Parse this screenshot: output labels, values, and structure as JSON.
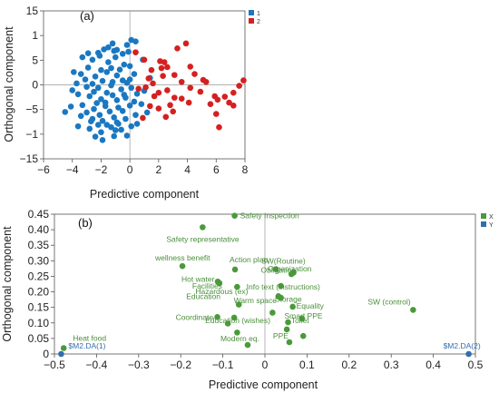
{
  "chart_data": [
    {
      "type": "scatter",
      "panel_label": "(a)",
      "xlabel": "Predictive component",
      "ylabel": "Orthogonal component",
      "xlim": [
        -6,
        8
      ],
      "ylim": [
        -15,
        15
      ],
      "xticks": [
        -6,
        -4,
        -2,
        0,
        2,
        4,
        6,
        8
      ],
      "yticks": [
        -15,
        -10,
        -5,
        0,
        5,
        10,
        15
      ],
      "legend": {
        "position": "top-right",
        "entries": [
          "1",
          "2"
        ]
      },
      "colors": {
        "1": "#1a78c2",
        "2": "#d62020"
      },
      "series": [
        {
          "name": "1",
          "points": [
            [
              -1.2,
              8.4
            ],
            [
              -0.9,
              7.1
            ],
            [
              -0.5,
              6.3
            ],
            [
              -0.2,
              8.1
            ],
            [
              0.1,
              9.1
            ],
            [
              0.4,
              8.8
            ],
            [
              -1.8,
              7.2
            ],
            [
              -2.2,
              6.5
            ],
            [
              -2.6,
              5.1
            ],
            [
              -1.5,
              4.6
            ],
            [
              -1.0,
              5.6
            ],
            [
              -0.4,
              4.1
            ],
            [
              0.0,
              3.8
            ],
            [
              0.3,
              2.2
            ],
            [
              -2.9,
              3.5
            ],
            [
              -3.4,
              2.2
            ],
            [
              -2.4,
              1.7
            ],
            [
              -1.6,
              2.6
            ],
            [
              -0.9,
              1.9
            ],
            [
              -0.5,
              0.9
            ],
            [
              0.0,
              1.1
            ],
            [
              -3.7,
              0.3
            ],
            [
              -3.0,
              -0.4
            ],
            [
              -2.2,
              -0.6
            ],
            [
              -1.3,
              -0.1
            ],
            [
              -0.6,
              -0.9
            ],
            [
              0.1,
              -0.6
            ],
            [
              0.5,
              -1.8
            ],
            [
              -3.6,
              -1.9
            ],
            [
              -2.8,
              -2.3
            ],
            [
              -2.0,
              -2.9
            ],
            [
              -1.2,
              -2.1
            ],
            [
              -0.3,
              -2.6
            ],
            [
              -4.5,
              -5.5
            ],
            [
              -4.1,
              -4.4
            ],
            [
              -3.3,
              -4.1
            ],
            [
              -2.5,
              -4.9
            ],
            [
              -1.7,
              -4.3
            ],
            [
              -0.8,
              -4.6
            ],
            [
              0.0,
              -4.2
            ],
            [
              0.8,
              -3.9
            ],
            [
              -3.4,
              -6.3
            ],
            [
              -2.6,
              -6.9
            ],
            [
              -1.9,
              -7.3
            ],
            [
              -1.1,
              -6.6
            ],
            [
              -0.3,
              -6.9
            ],
            [
              0.4,
              -6.1
            ],
            [
              -3.6,
              -8.4
            ],
            [
              -2.8,
              -8.9
            ],
            [
              -2.0,
              -9.6
            ],
            [
              -1.3,
              -8.6
            ],
            [
              -0.6,
              -9.1
            ],
            [
              0.1,
              -8.4
            ],
            [
              -1.9,
              -11.2
            ],
            [
              -2.4,
              -10.5
            ],
            [
              -1.1,
              -10.4
            ],
            [
              -0.2,
              -10.3
            ],
            [
              0.5,
              -7.9
            ],
            [
              -1.5,
              7.6
            ],
            [
              -2.1,
              5.9
            ],
            [
              -2.9,
              6.4
            ],
            [
              -1.3,
              3.4
            ],
            [
              -0.7,
              3.1
            ],
            [
              -3.1,
              1.1
            ],
            [
              -1.9,
              0.8
            ],
            [
              -0.2,
              0.4
            ],
            [
              -2.5,
              -1.4
            ],
            [
              -1.6,
              -1.6
            ],
            [
              -0.9,
              -3.1
            ],
            [
              -2.3,
              -3.7
            ],
            [
              -1.4,
              -5.4
            ],
            [
              -0.5,
              -5.3
            ],
            [
              -3.0,
              -5.6
            ],
            [
              -2.1,
              -6.1
            ],
            [
              -1.6,
              -8.1
            ],
            [
              -0.9,
              -7.6
            ],
            [
              -2.7,
              -7.4
            ],
            [
              0.9,
              5.1
            ],
            [
              1.0,
              -1.2
            ],
            [
              1.2,
              -5.6
            ],
            [
              -3.9,
              2.6
            ],
            [
              -4.0,
              -1.1
            ],
            [
              -1.1,
              6.9
            ],
            [
              -0.1,
              6.7
            ],
            [
              -2.0,
              3.0
            ],
            [
              -1.2,
              0.6
            ],
            [
              -1.7,
              -3.6
            ],
            [
              -0.4,
              -2.0
            ],
            [
              -2.2,
              -8.1
            ],
            [
              -1.0,
              -9.2
            ],
            [
              0.3,
              -3.4
            ],
            [
              -3.3,
              5.6
            ],
            [
              -2.6,
              0.2
            ],
            [
              -0.8,
              -7.9
            ],
            [
              1.4,
              1.4
            ]
          ]
        },
        {
          "name": "2",
          "points": [
            [
              0.4,
              6.6
            ],
            [
              1.0,
              5.1
            ],
            [
              1.5,
              3.0
            ],
            [
              2.1,
              4.8
            ],
            [
              2.6,
              3.6
            ],
            [
              3.3,
              7.4
            ],
            [
              3.9,
              8.4
            ],
            [
              2.3,
              1.8
            ],
            [
              3.1,
              2.0
            ],
            [
              4.2,
              3.7
            ],
            [
              1.3,
              1.3
            ],
            [
              0.6,
              -0.8
            ],
            [
              1.1,
              -0.5
            ],
            [
              1.6,
              0.3
            ],
            [
              2.0,
              -1.6
            ],
            [
              2.6,
              -1.1
            ],
            [
              3.1,
              -2.6
            ],
            [
              3.6,
              0.6
            ],
            [
              4.2,
              -0.6
            ],
            [
              4.9,
              -1.4
            ],
            [
              5.3,
              0.6
            ],
            [
              5.9,
              -2.3
            ],
            [
              6.6,
              -2.4
            ],
            [
              7.2,
              -1.6
            ],
            [
              7.6,
              -0.2
            ],
            [
              7.9,
              0.9
            ],
            [
              5.6,
              -3.9
            ],
            [
              6.1,
              -3.0
            ],
            [
              6.9,
              -3.6
            ],
            [
              6.0,
              -5.9
            ],
            [
              6.2,
              -8.6
            ],
            [
              4.1,
              -3.6
            ],
            [
              3.0,
              -5.4
            ],
            [
              2.0,
              -4.8
            ],
            [
              1.4,
              -4.3
            ],
            [
              0.9,
              -6.7
            ],
            [
              2.5,
              -6.5
            ],
            [
              2.2,
              3.4
            ],
            [
              2.4,
              4.6
            ],
            [
              5.1,
              1.0
            ],
            [
              7.2,
              -4.2
            ],
            [
              4.5,
              2.2
            ],
            [
              3.6,
              -2.8
            ],
            [
              2.8,
              -4.1
            ],
            [
              1.7,
              -2.3
            ]
          ]
        }
      ]
    },
    {
      "type": "scatter",
      "panel_label": "(b)",
      "xlabel": "Predictive component",
      "ylabel": "Orthogonal component",
      "xlim": [
        -0.5,
        0.5
      ],
      "ylim": [
        0,
        0.45
      ],
      "xticks": [
        -0.5,
        -0.4,
        -0.3,
        -0.2,
        -0.1,
        0,
        0.1,
        0.2,
        0.3,
        0.4,
        0.5
      ],
      "yticks": [
        0,
        0.05,
        0.1,
        0.15,
        0.2,
        0.25,
        0.3,
        0.35,
        0.4,
        0.45
      ],
      "legend": {
        "position": "top-right",
        "entries": [
          "X",
          "Y"
        ]
      },
      "colors": {
        "X": "#4a9a3a",
        "Y": "#2f6fae"
      },
      "series": [
        {
          "name": "X",
          "points": [
            {
              "label": "Safety Inspection",
              "x": -0.072,
              "y": 0.445
            },
            {
              "label": "Safety representative",
              "x": -0.148,
              "y": 0.408
            },
            {
              "label": "wellness benefit",
              "x": -0.196,
              "y": 0.283
            },
            {
              "label": "Action plan",
              "x": -0.071,
              "y": 0.272
            },
            {
              "label": "SW(Routine)",
              "x": 0.026,
              "y": 0.273
            },
            {
              "label": "Organization",
              "x": 0.063,
              "y": 0.257
            },
            {
              "label": "Obligation",
              "x": 0.068,
              "y": 0.262
            },
            {
              "label": "Hot water",
              "x": -0.112,
              "y": 0.233
            },
            {
              "label": "Facilities",
              "x": -0.108,
              "y": 0.228
            },
            {
              "label": "Hazardous (ex)",
              "x": -0.066,
              "y": 0.216
            },
            {
              "label": "Info text (instructions)",
              "x": 0.038,
              "y": 0.219
            },
            {
              "label": "Storage",
              "x": 0.032,
              "y": 0.186
            },
            {
              "label": "Warm space",
              "x": 0.038,
              "y": 0.181
            },
            {
              "label": "Education",
              "x": -0.062,
              "y": 0.159
            },
            {
              "label": "Equality",
              "x": 0.066,
              "y": 0.152
            },
            {
              "label": "Toilet",
              "x": 0.088,
              "y": 0.114
            },
            {
              "label": "Coordinate",
              "x": -0.113,
              "y": 0.119
            },
            {
              "label": "Education (wishes)",
              "x": -0.073,
              "y": 0.117
            },
            {
              "label": "Smart PPE",
              "x": 0.055,
              "y": 0.102
            },
            {
              "label": "PPE",
              "x": 0.058,
              "y": 0.038
            },
            {
              "label": "Modern eq.",
              "x": -0.041,
              "y": 0.029
            },
            {
              "label": "SW (control)",
              "x": 0.352,
              "y": 0.142
            },
            {
              "label": "Heat food",
              "x": -0.478,
              "y": 0.019
            },
            {
              "label": "",
              "x": 0.018,
              "y": 0.133
            },
            {
              "label": "",
              "x": 0.091,
              "y": 0.058
            },
            {
              "label": "",
              "x": -0.088,
              "y": 0.098
            },
            {
              "label": "",
              "x": -0.066,
              "y": 0.069
            },
            {
              "label": "",
              "x": 0.052,
              "y": 0.079
            }
          ]
        },
        {
          "name": "Y",
          "points": [
            {
              "label": "$M2.DA(1)",
              "x": -0.484,
              "y": 0.0
            },
            {
              "label": "$M2.DA(2)",
              "x": 0.484,
              "y": 0.0
            }
          ]
        }
      ]
    }
  ]
}
